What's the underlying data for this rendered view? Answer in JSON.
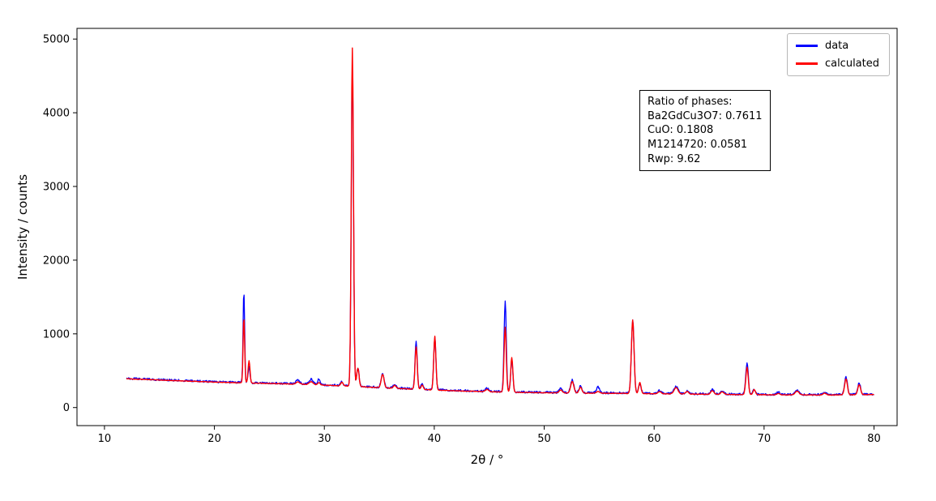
{
  "chart_data": {
    "type": "line",
    "title": "",
    "xlabel": "2θ / °",
    "ylabel": "Intensity / counts",
    "xlim": [
      7.5,
      82.1
    ],
    "ylim": [
      -245,
      5145
    ],
    "xticks": [
      10,
      20,
      30,
      40,
      50,
      60,
      70,
      80
    ],
    "yticks": [
      0,
      1000,
      2000,
      3000,
      4000,
      5000
    ],
    "grid": false,
    "legend_position": "upper right",
    "x_start": 12,
    "x_end": 80,
    "x_step": 0.05,
    "series": [
      {
        "name": "data",
        "color": "#0000ff"
      },
      {
        "name": "calculated",
        "color": "#ff0000"
      }
    ],
    "noise": {
      "data": 14,
      "calculated": 3
    },
    "background_points": [
      [
        12,
        395
      ],
      [
        14,
        385
      ],
      [
        16,
        372
      ],
      [
        18,
        362
      ],
      [
        20,
        350
      ],
      [
        22,
        342
      ],
      [
        24,
        335
      ],
      [
        26,
        328
      ],
      [
        28,
        320
      ],
      [
        30,
        308
      ],
      [
        32,
        298
      ],
      [
        34,
        282
      ],
      [
        36,
        268
      ],
      [
        38,
        256
      ],
      [
        40,
        243
      ],
      [
        42,
        232
      ],
      [
        44,
        224
      ],
      [
        46,
        216
      ],
      [
        48,
        210
      ],
      [
        50,
        206
      ],
      [
        52,
        202
      ],
      [
        54,
        200
      ],
      [
        56,
        198
      ],
      [
        58,
        196
      ],
      [
        60,
        192
      ],
      [
        62,
        190
      ],
      [
        64,
        186
      ],
      [
        66,
        183
      ],
      [
        68,
        181
      ],
      [
        70,
        179
      ],
      [
        72,
        177
      ],
      [
        74,
        176
      ],
      [
        76,
        176
      ],
      [
        78,
        178
      ],
      [
        80,
        182
      ]
    ],
    "peaks": [
      {
        "x": 22.68,
        "w": 0.1,
        "data": 1235,
        "calculated": 890
      },
      {
        "x": 23.15,
        "w": 0.12,
        "data": 220,
        "calculated": 300
      },
      {
        "x": 27.6,
        "w": 0.25,
        "data": 50,
        "calculated": 30
      },
      {
        "x": 28.8,
        "w": 0.25,
        "data": 70,
        "calculated": 40
      },
      {
        "x": 29.5,
        "w": 0.15,
        "data": 80,
        "calculated": 35
      },
      {
        "x": 31.6,
        "w": 0.15,
        "data": 50,
        "calculated": 50
      },
      {
        "x": 32.55,
        "w": 0.14,
        "data": 4350,
        "calculated": 4590
      },
      {
        "x": 33.05,
        "w": 0.15,
        "data": 250,
        "calculated": 250
      },
      {
        "x": 35.3,
        "w": 0.18,
        "data": 200,
        "calculated": 185
      },
      {
        "x": 36.4,
        "w": 0.18,
        "data": 50,
        "calculated": 40
      },
      {
        "x": 38.35,
        "w": 0.14,
        "data": 640,
        "calculated": 575
      },
      {
        "x": 38.9,
        "w": 0.15,
        "data": 80,
        "calculated": 60
      },
      {
        "x": 40.05,
        "w": 0.14,
        "data": 720,
        "calculated": 730
      },
      {
        "x": 44.8,
        "w": 0.2,
        "data": 40,
        "calculated": 30
      },
      {
        "x": 46.45,
        "w": 0.14,
        "data": 1230,
        "calculated": 880
      },
      {
        "x": 47.05,
        "w": 0.14,
        "data": 430,
        "calculated": 470
      },
      {
        "x": 51.5,
        "w": 0.2,
        "data": 60,
        "calculated": 40
      },
      {
        "x": 52.55,
        "w": 0.2,
        "data": 170,
        "calculated": 160
      },
      {
        "x": 53.3,
        "w": 0.18,
        "data": 90,
        "calculated": 80
      },
      {
        "x": 54.9,
        "w": 0.2,
        "data": 80,
        "calculated": 25
      },
      {
        "x": 58.05,
        "w": 0.17,
        "data": 990,
        "calculated": 1000
      },
      {
        "x": 58.7,
        "w": 0.15,
        "data": 140,
        "calculated": 150
      },
      {
        "x": 60.5,
        "w": 0.2,
        "data": 40,
        "calculated": 30
      },
      {
        "x": 62.0,
        "w": 0.25,
        "data": 95,
        "calculated": 85
      },
      {
        "x": 63.0,
        "w": 0.2,
        "data": 40,
        "calculated": 35
      },
      {
        "x": 65.3,
        "w": 0.2,
        "data": 60,
        "calculated": 50
      },
      {
        "x": 66.2,
        "w": 0.2,
        "data": 45,
        "calculated": 35
      },
      {
        "x": 68.45,
        "w": 0.16,
        "data": 430,
        "calculated": 370
      },
      {
        "x": 69.1,
        "w": 0.15,
        "data": 70,
        "calculated": 70
      },
      {
        "x": 71.3,
        "w": 0.2,
        "data": 30,
        "calculated": 20
      },
      {
        "x": 73.0,
        "w": 0.25,
        "data": 60,
        "calculated": 50
      },
      {
        "x": 75.5,
        "w": 0.2,
        "data": 30,
        "calculated": 25
      },
      {
        "x": 77.45,
        "w": 0.18,
        "data": 235,
        "calculated": 215
      },
      {
        "x": 78.65,
        "w": 0.18,
        "data": 150,
        "calculated": 135
      }
    ],
    "annotation": {
      "lines": [
        "Ratio of phases:",
        "Ba2GdCu3O7: 0.7611",
        "CuO: 0.1808",
        "M1214720: 0.0581",
        "Rwp: 9.62"
      ]
    }
  }
}
